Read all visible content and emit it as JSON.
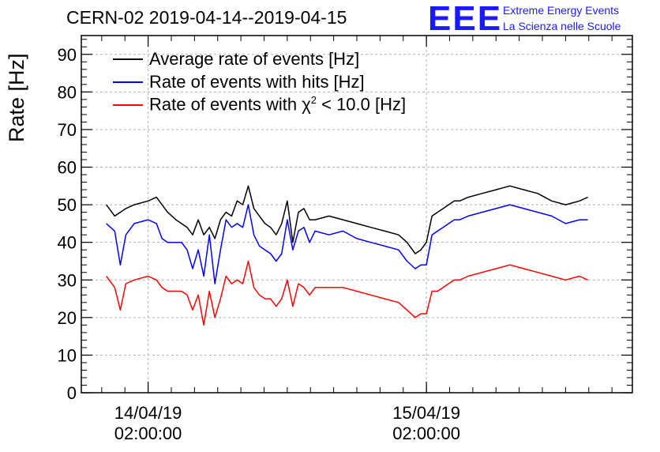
{
  "header": {
    "title": "CERN-02 2019-04-14--2019-04-15",
    "logo_text": "EEE",
    "org_line1": "Extreme Energy Events",
    "org_line2": "La Scienza nelle Scuole"
  },
  "colors": {
    "average": "#000000",
    "hits": "#0000ff",
    "chi2": "#ff0000",
    "grid": "#b0b0b0",
    "logo": "#1a1aff"
  },
  "chart_data": {
    "type": "line",
    "title": "CERN-02 2019-04-14--2019-04-15",
    "xlabel": "",
    "ylabel": "Rate [Hz]",
    "ylim": [
      0,
      95
    ],
    "yticks": [
      0,
      10,
      20,
      30,
      40,
      50,
      60,
      70,
      80,
      90
    ],
    "xlim": [
      -0.24,
      1.74
    ],
    "x_unit": "days since 14/04/19 02:00:00",
    "xticks": [
      {
        "value": 0,
        "date": "14/04/19",
        "time": "02:00:00"
      },
      {
        "value": 1,
        "date": "15/04/19",
        "time": "02:00:00"
      }
    ],
    "grid": true,
    "legend_position": "top-left",
    "x": [
      -0.15,
      -0.12,
      -0.1,
      -0.08,
      -0.05,
      0.0,
      0.03,
      0.05,
      0.07,
      0.1,
      0.12,
      0.14,
      0.16,
      0.18,
      0.2,
      0.22,
      0.24,
      0.26,
      0.28,
      0.3,
      0.32,
      0.34,
      0.36,
      0.38,
      0.4,
      0.42,
      0.44,
      0.46,
      0.48,
      0.5,
      0.52,
      0.54,
      0.56,
      0.58,
      0.6,
      0.65,
      0.7,
      0.75,
      0.8,
      0.85,
      0.9,
      0.93,
      0.96,
      0.98,
      1.0,
      1.02,
      1.04,
      1.06,
      1.08,
      1.1,
      1.12,
      1.15,
      1.2,
      1.25,
      1.3,
      1.35,
      1.4,
      1.45,
      1.5,
      1.55,
      1.58
    ],
    "series": [
      {
        "name": "Average rate of events [Hz]",
        "color": "#000000",
        "values": [
          50,
          47,
          48,
          49,
          50,
          51,
          52,
          50,
          48,
          46,
          45,
          44,
          42,
          46,
          42,
          44,
          41,
          46,
          48,
          47,
          51,
          50,
          55,
          49,
          47,
          45,
          44,
          42,
          45,
          51,
          40,
          48,
          49,
          46,
          46,
          47,
          46,
          45,
          44,
          43,
          42,
          40,
          37,
          38,
          40,
          47,
          48,
          49,
          50,
          51,
          51,
          52,
          53,
          54,
          55,
          54,
          53,
          51,
          50,
          51,
          52
        ]
      },
      {
        "name": "Rate of events with hits [Hz]",
        "color": "#0000ff",
        "values": [
          45,
          43,
          34,
          42,
          45,
          46,
          45,
          41,
          40,
          40,
          40,
          38,
          33,
          38,
          31,
          42,
          29,
          38,
          46,
          44,
          45,
          44,
          50,
          42,
          39,
          38,
          37,
          35,
          37,
          46,
          38,
          43,
          44,
          40,
          43,
          42,
          43,
          41,
          40,
          39,
          38,
          35,
          33,
          34,
          34,
          42,
          43,
          44,
          45,
          46,
          46,
          47,
          48,
          49,
          50,
          49,
          48,
          47,
          45,
          46,
          46
        ]
      },
      {
        "name": "Rate of events with χ² < 10.0 [Hz]",
        "color": "#ff0000",
        "values": [
          31,
          28,
          22,
          29,
          30,
          31,
          30,
          28,
          27,
          27,
          27,
          26,
          22,
          26,
          18,
          27,
          20,
          25,
          31,
          29,
          30,
          29,
          35,
          28,
          26,
          25,
          25,
          23,
          25,
          30,
          23,
          29,
          28,
          26,
          28,
          28,
          28,
          27,
          26,
          25,
          24,
          22,
          20,
          21,
          21,
          27,
          27,
          28,
          29,
          30,
          30,
          31,
          32,
          33,
          34,
          33,
          32,
          31,
          30,
          31,
          30
        ]
      }
    ]
  },
  "legend": {
    "items": [
      {
        "label": "Average rate of events [Hz]",
        "color": "#000000"
      },
      {
        "label": "Rate of events with hits [Hz]",
        "color": "#0000ff"
      },
      {
        "label_prefix": "Rate of events with χ",
        "label_sup": "2",
        "label_suffix": " < 10.0 [Hz]",
        "color": "#ff0000"
      }
    ]
  }
}
